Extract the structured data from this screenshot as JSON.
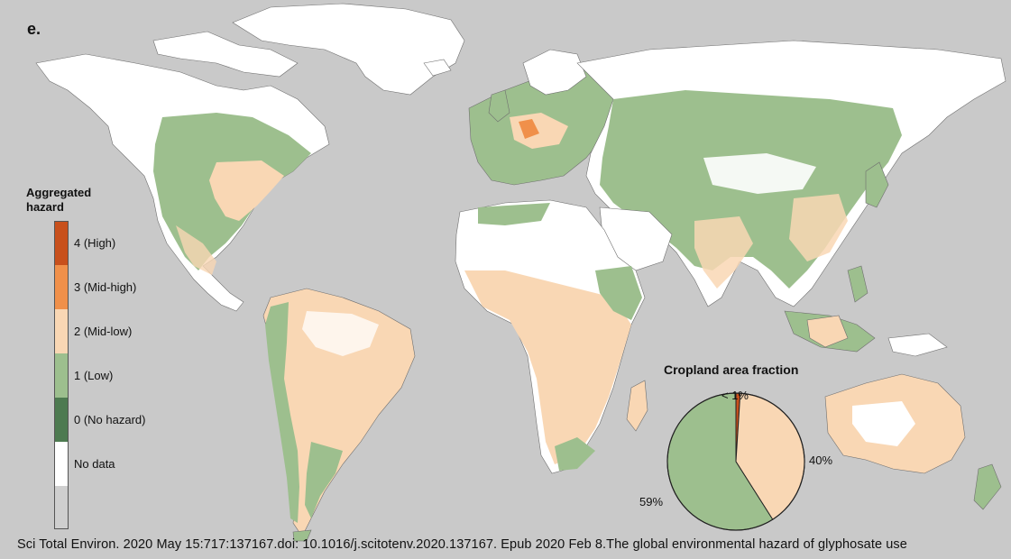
{
  "panel_label": "e.",
  "legend": {
    "title": "Aggregated hazard",
    "items": [
      {
        "label": "4 (High)",
        "color": "#c8501c"
      },
      {
        "label": "3 (Mid-high)",
        "color": "#f0904a"
      },
      {
        "label": "2 (Mid-low)",
        "color": "#f9d7b4"
      },
      {
        "label": "1 (Low)",
        "color": "#9dbf8e"
      },
      {
        "label": "0 (No hazard)",
        "color": "#4d7a50"
      },
      {
        "label": "No data",
        "color": "#ffffff"
      },
      {
        "label": "",
        "color": "#cfcfcf"
      }
    ]
  },
  "map_colors": {
    "ocean": "#c9c9c9",
    "land_no_data": "#ffffff",
    "low": "#9dbf8e",
    "mid_low": "#f9d7b4",
    "mid_high": "#f0904a",
    "high": "#c8501c",
    "no_hazard": "#4d7a50",
    "border": "#6f6f6f"
  },
  "chart_data": {
    "type": "pie",
    "title": "Cropland area fraction",
    "slices": [
      {
        "label": "< 1%",
        "value": 1,
        "color": "#c8501c"
      },
      {
        "label": "40%",
        "value": 40,
        "color": "#f9d7b4"
      },
      {
        "label": "59%",
        "value": 59,
        "color": "#9dbf8e"
      }
    ]
  },
  "citation": "Sci Total Environ. 2020 May 15:717:137167.doi: 10.1016/j.scitotenv.2020.137167. Epub 2020 Feb 8.The global environmental hazard of glyphosate use"
}
